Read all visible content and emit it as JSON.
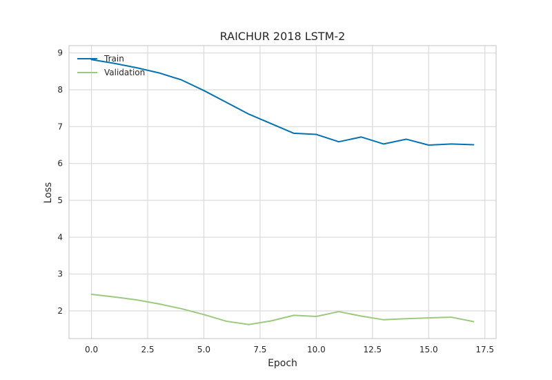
{
  "chart_data": {
    "type": "line",
    "title": "RAICHUR 2018 LSTM-2",
    "xlabel": "Epoch",
    "ylabel": "Loss",
    "xlim": [
      -1,
      18
    ],
    "ylim": [
      1.25,
      9.2
    ],
    "xticks": [
      0.0,
      2.5,
      5.0,
      7.5,
      10.0,
      12.5,
      15.0,
      17.5
    ],
    "xtick_labels": [
      "0.0",
      "2.5",
      "5.0",
      "7.5",
      "10.0",
      "12.5",
      "15.0",
      "17.5"
    ],
    "yticks": [
      2,
      3,
      4,
      5,
      6,
      7,
      8,
      9
    ],
    "ytick_labels": [
      "2",
      "3",
      "4",
      "5",
      "6",
      "7",
      "8",
      "9"
    ],
    "grid": true,
    "legend_position": "top-left",
    "x": [
      0,
      1,
      2,
      3,
      4,
      5,
      6,
      7,
      8,
      9,
      10,
      11,
      12,
      13,
      14,
      15,
      16,
      17
    ],
    "series": [
      {
        "name": "Train",
        "color": "#0072b2",
        "values": [
          8.82,
          8.72,
          8.6,
          8.46,
          8.27,
          7.98,
          7.66,
          7.34,
          7.08,
          6.82,
          6.79,
          6.59,
          6.72,
          6.53,
          6.66,
          6.5,
          6.53,
          6.51
        ]
      },
      {
        "name": "Validation",
        "color": "#9cc97d",
        "values": [
          2.45,
          2.38,
          2.3,
          2.19,
          2.06,
          1.9,
          1.72,
          1.63,
          1.73,
          1.88,
          1.85,
          1.98,
          1.86,
          1.76,
          1.79,
          1.81,
          1.83,
          1.71
        ]
      }
    ]
  }
}
